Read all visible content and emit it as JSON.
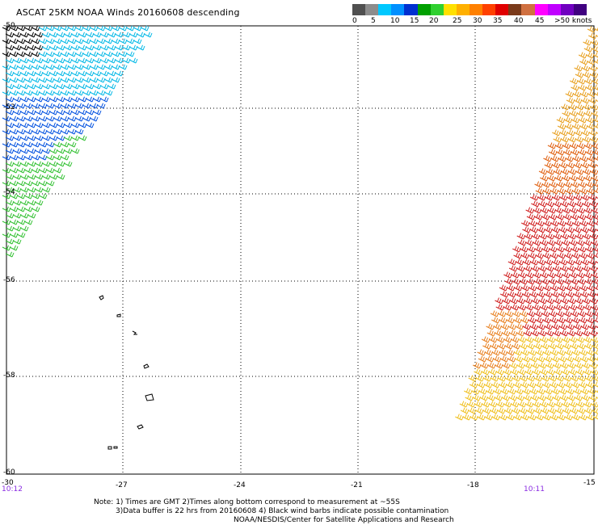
{
  "title": "ASCAT 25KM NOAA Winds 20160608 descending",
  "legend": {
    "labels": [
      "0",
      "5",
      "10",
      "15",
      "20",
      "25",
      "30",
      "35",
      "40",
      "45",
      ">50 knots"
    ],
    "colors": [
      "#505050",
      "#8c8c8c",
      "#00c8ff",
      "#0090ff",
      "#0030d0",
      "#00a000",
      "#30d030",
      "#ffe000",
      "#ffb000",
      "#ff8000",
      "#ff4000",
      "#e00000",
      "#7a3a1a",
      "#d07040",
      "#ff00ff",
      "#c000ff",
      "#7000c0",
      "#400080"
    ]
  },
  "map": {
    "lat_labels": [
      "-50",
      "-52",
      "-54",
      "-56",
      "-58",
      "-60"
    ],
    "lon_labels": [
      "-30",
      "-27",
      "-24",
      "-21",
      "-18",
      "-15"
    ],
    "left_time": "10:12",
    "right_time": "10:11"
  },
  "notes": {
    "line1": "Note: 1) Times are GMT 2)Times along bottom correspond to measurement at ~55S",
    "line2": "3)Data buffer is 22 hrs from 20160608 4) Black wind barbs indicate possible contamination",
    "line3": "NOAA/NESDIS/Center for Satellite Applications and Research"
  }
}
